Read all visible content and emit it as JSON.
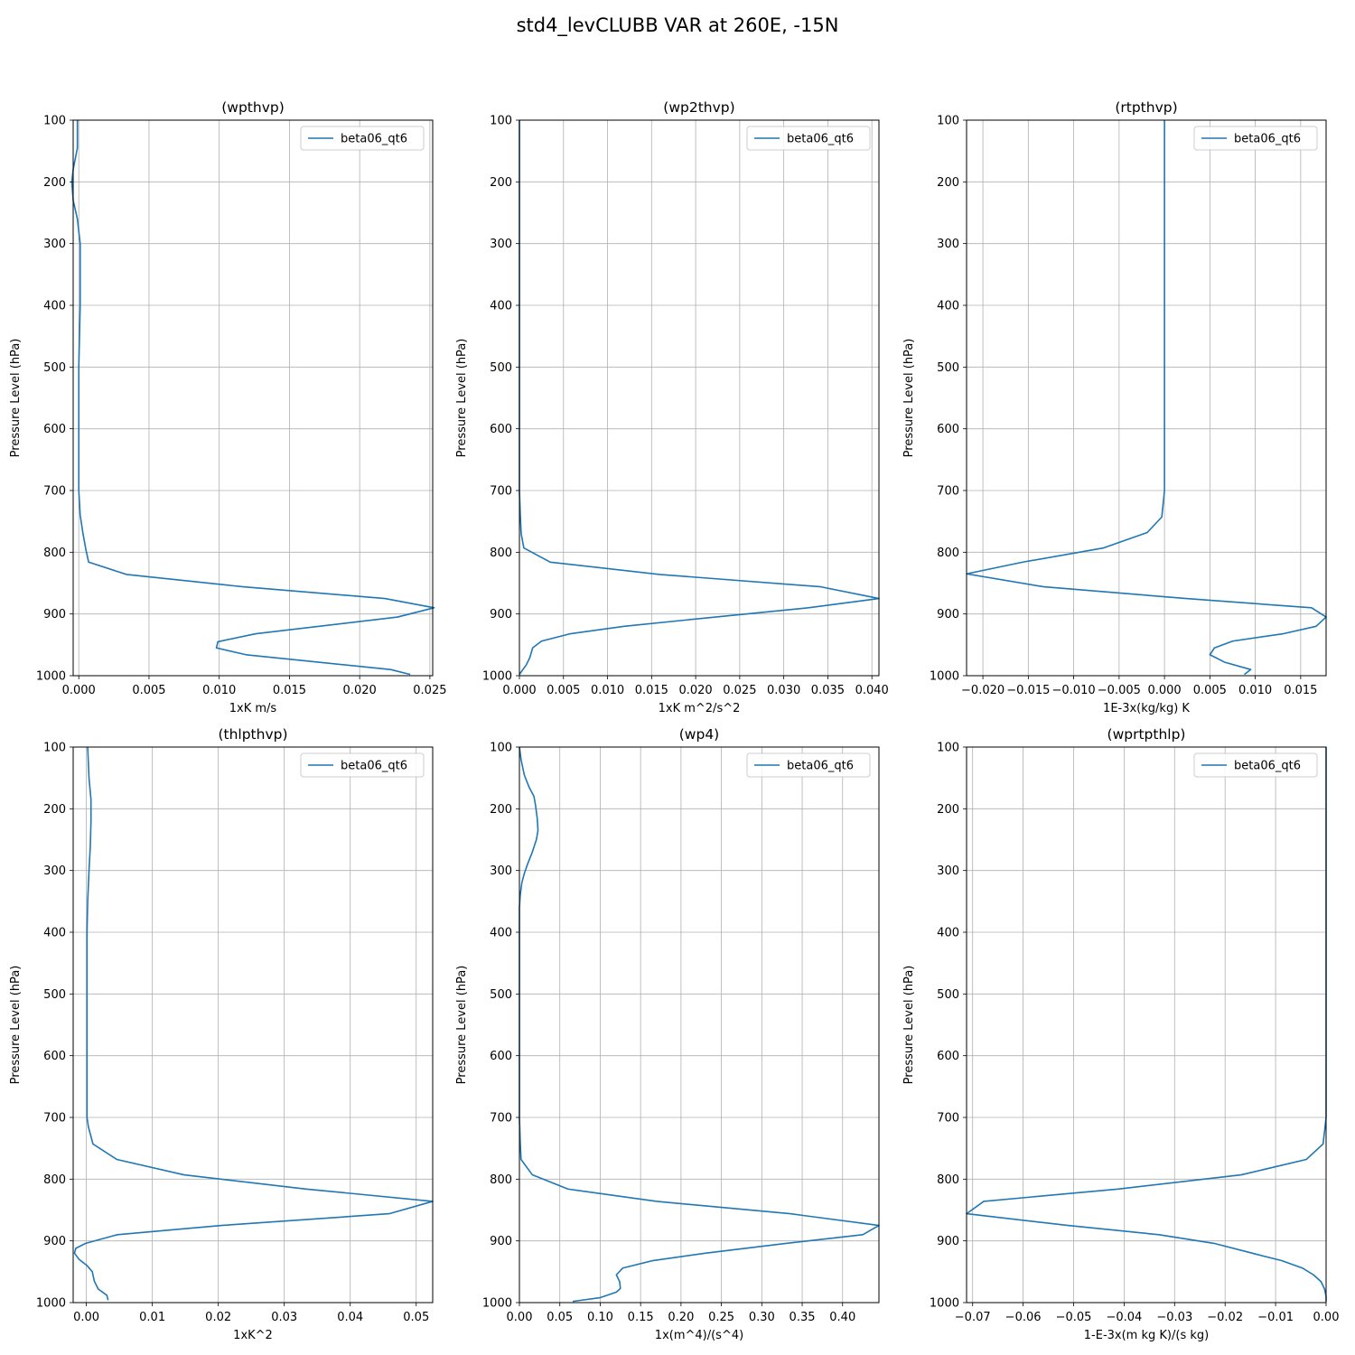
{
  "figure": {
    "suptitle": "std4_levCLUBB VAR at 260E, -15N"
  },
  "chart_data": [
    {
      "type": "line",
      "title": "(wpthvp)",
      "xlabel": "1xK m/s",
      "ylabel": "Pressure Level (hPa)",
      "xlim": [
        -0.0004,
        0.0252
      ],
      "ylim": [
        1000,
        100
      ],
      "y_inverted": true,
      "xticks": [
        0.0,
        0.005,
        0.01,
        0.015,
        0.02,
        0.025
      ],
      "xtick_labels": [
        "0.000",
        "0.005",
        "0.010",
        "0.015",
        "0.020",
        "0.025"
      ],
      "yticks": [
        100,
        200,
        300,
        400,
        500,
        600,
        700,
        800,
        900,
        1000
      ],
      "ytick_labels": [
        "100",
        "200",
        "300",
        "400",
        "500",
        "600",
        "700",
        "800",
        "900",
        "1000"
      ],
      "grid": true,
      "legend": {
        "location": "upper right",
        "entries": [
          "beta06_qt6"
        ]
      },
      "series": [
        {
          "name": "beta06_qt6",
          "color": "#1f77b4",
          "points": [
            [
              -0.0001,
              100
            ],
            [
              -0.0001,
              145
            ],
            [
              -0.0004,
              180
            ],
            [
              -0.0005,
              200
            ],
            [
              -0.0004,
              230
            ],
            [
              -0.0001,
              260
            ],
            [
              0.0,
              280
            ],
            [
              0.0001,
              300
            ],
            [
              0.0001,
              400
            ],
            [
              0.0,
              500
            ],
            [
              0.0,
              600
            ],
            [
              0.0,
              700
            ],
            [
              0.0001,
              740
            ],
            [
              0.0003,
              770
            ],
            [
              0.0005,
              795
            ],
            [
              0.0007,
              816
            ],
            [
              0.0034,
              836
            ],
            [
              0.0117,
              856
            ],
            [
              0.0218,
              875
            ],
            [
              0.0253,
              890
            ],
            [
              0.0227,
              905
            ],
            [
              0.0126,
              932
            ],
            [
              0.0099,
              945
            ],
            [
              0.0098,
              955
            ],
            [
              0.0119,
              966
            ],
            [
              0.0222,
              990
            ],
            [
              0.0236,
              998
            ]
          ]
        }
      ]
    },
    {
      "type": "line",
      "title": "(wp2thvp)",
      "xlabel": "1xK m^2/s^2",
      "ylabel": "Pressure Level (hPa)",
      "xlim": [
        0.0,
        0.0408
      ],
      "ylim": [
        1000,
        100
      ],
      "y_inverted": true,
      "xticks": [
        0.0,
        0.005,
        0.01,
        0.015,
        0.02,
        0.025,
        0.03,
        0.035,
        0.04
      ],
      "xtick_labels": [
        "0.000",
        "0.005",
        "0.010",
        "0.015",
        "0.020",
        "0.025",
        "0.030",
        "0.035",
        "0.040"
      ],
      "yticks": [
        100,
        200,
        300,
        400,
        500,
        600,
        700,
        800,
        900,
        1000
      ],
      "ytick_labels": [
        "100",
        "200",
        "300",
        "400",
        "500",
        "600",
        "700",
        "800",
        "900",
        "1000"
      ],
      "grid": true,
      "legend": {
        "location": "upper right",
        "entries": [
          "beta06_qt6"
        ]
      },
      "series": [
        {
          "name": "beta06_qt6",
          "color": "#1f77b4",
          "points": [
            [
              0.0,
              100
            ],
            [
              0.0,
              700
            ],
            [
              0.0001,
              740
            ],
            [
              0.0002,
              770
            ],
            [
              0.0005,
              793
            ],
            [
              0.0035,
              816
            ],
            [
              0.0159,
              836
            ],
            [
              0.0342,
              856
            ],
            [
              0.0408,
              875
            ],
            [
              0.0328,
              890
            ],
            [
              0.0229,
              904
            ],
            [
              0.0119,
              920
            ],
            [
              0.0058,
              932
            ],
            [
              0.0025,
              944
            ],
            [
              0.0015,
              955
            ],
            [
              0.0012,
              970
            ],
            [
              0.0008,
              982
            ],
            [
              0.0,
              998
            ]
          ]
        }
      ]
    },
    {
      "type": "line",
      "title": "(rtpthvp)",
      "xlabel": "1E-3x(kg/kg) K",
      "ylabel": "Pressure Level (hPa)",
      "xlim": [
        -0.0218,
        0.0178
      ],
      "ylim": [
        1000,
        100
      ],
      "y_inverted": true,
      "xticks": [
        -0.02,
        -0.015,
        -0.01,
        -0.005,
        0.0,
        0.005,
        0.01,
        0.015
      ],
      "xtick_labels": [
        "−0.020",
        "−0.015",
        "−0.010",
        "−0.005",
        "0.000",
        "0.005",
        "0.010",
        "0.015"
      ],
      "yticks": [
        100,
        200,
        300,
        400,
        500,
        600,
        700,
        800,
        900,
        1000
      ],
      "ytick_labels": [
        "100",
        "200",
        "300",
        "400",
        "500",
        "600",
        "700",
        "800",
        "900",
        "1000"
      ],
      "grid": true,
      "legend": {
        "location": "upper right",
        "entries": [
          "beta06_qt6"
        ]
      },
      "series": [
        {
          "name": "beta06_qt6",
          "color": "#1f77b4",
          "points": [
            [
              0.0,
              100
            ],
            [
              0.0,
              700
            ],
            [
              -0.0001,
              715
            ],
            [
              -0.0003,
              743
            ],
            [
              -0.0019,
              768
            ],
            [
              -0.0067,
              793
            ],
            [
              -0.0156,
              816
            ],
            [
              -0.0218,
              835
            ],
            [
              -0.0133,
              856
            ],
            [
              0.0024,
              875
            ],
            [
              0.0162,
              890
            ],
            [
              0.0178,
              905
            ],
            [
              0.0167,
              920
            ],
            [
              0.0131,
              932
            ],
            [
              0.0075,
              944
            ],
            [
              0.0055,
              955
            ],
            [
              0.005,
              966
            ],
            [
              0.0066,
              978
            ],
            [
              0.0095,
              990
            ],
            [
              0.0088,
              998
            ]
          ]
        }
      ]
    },
    {
      "type": "line",
      "title": "(thlpthvp)",
      "xlabel": "1xK^2",
      "ylabel": "Pressure Level (hPa)",
      "xlim": [
        -0.002,
        0.0525
      ],
      "ylim": [
        1000,
        100
      ],
      "y_inverted": true,
      "xticks": [
        0.0,
        0.01,
        0.02,
        0.03,
        0.04,
        0.05
      ],
      "xtick_labels": [
        "0.00",
        "0.01",
        "0.02",
        "0.03",
        "0.04",
        "0.05"
      ],
      "yticks": [
        100,
        200,
        300,
        400,
        500,
        600,
        700,
        800,
        900,
        1000
      ],
      "ytick_labels": [
        "100",
        "200",
        "300",
        "400",
        "500",
        "600",
        "700",
        "800",
        "900",
        "1000"
      ],
      "grid": true,
      "legend": {
        "location": "upper right",
        "entries": [
          "beta06_qt6"
        ]
      },
      "series": [
        {
          "name": "beta06_qt6",
          "color": "#1f77b4",
          "points": [
            [
              0.0002,
              100
            ],
            [
              0.0004,
              150
            ],
            [
              0.0007,
              185
            ],
            [
              0.0007,
              220
            ],
            [
              0.0006,
              260
            ],
            [
              0.0004,
              300
            ],
            [
              0.0002,
              350
            ],
            [
              0.0001,
              400
            ],
            [
              0.0001,
              500
            ],
            [
              0.0001,
              600
            ],
            [
              0.0001,
              700
            ],
            [
              0.0003,
              715
            ],
            [
              0.001,
              743
            ],
            [
              0.0046,
              768
            ],
            [
              0.0148,
              793
            ],
            [
              0.0333,
              816
            ],
            [
              0.0525,
              836
            ],
            [
              0.0459,
              856
            ],
            [
              0.0205,
              875
            ],
            [
              0.0047,
              890
            ],
            [
              -0.0001,
              904
            ],
            [
              -0.0016,
              912
            ],
            [
              -0.0018,
              920
            ],
            [
              -0.0011,
              930
            ],
            [
              0.0001,
              940
            ],
            [
              0.0009,
              950
            ],
            [
              0.0012,
              965
            ],
            [
              0.0018,
              978
            ],
            [
              0.0031,
              988
            ],
            [
              0.0033,
              996
            ]
          ]
        }
      ]
    },
    {
      "type": "line",
      "title": "(wp4)",
      "xlabel": "1x(m^4)/(s^4)",
      "ylabel": "Pressure Level (hPa)",
      "xlim": [
        0.0,
        0.445
      ],
      "ylim": [
        1000,
        100
      ],
      "y_inverted": true,
      "xticks": [
        0.0,
        0.05,
        0.1,
        0.15,
        0.2,
        0.25,
        0.3,
        0.35,
        0.4
      ],
      "xtick_labels": [
        "0.00",
        "0.05",
        "0.10",
        "0.15",
        "0.20",
        "0.25",
        "0.30",
        "0.35",
        "0.40"
      ],
      "yticks": [
        100,
        200,
        300,
        400,
        500,
        600,
        700,
        800,
        900,
        1000
      ],
      "ytick_labels": [
        "100",
        "200",
        "300",
        "400",
        "500",
        "600",
        "700",
        "800",
        "900",
        "1000"
      ],
      "grid": true,
      "legend": {
        "location": "upper right",
        "entries": [
          "beta06_qt6"
        ]
      },
      "series": [
        {
          "name": "beta06_qt6",
          "color": "#1f77b4",
          "points": [
            [
              0.0,
              100
            ],
            [
              0.002,
              120
            ],
            [
              0.006,
              145
            ],
            [
              0.012,
              165
            ],
            [
              0.018,
              180
            ],
            [
              0.02,
              195
            ],
            [
              0.022,
              215
            ],
            [
              0.023,
              235
            ],
            [
              0.021,
              250
            ],
            [
              0.016,
              270
            ],
            [
              0.01,
              290
            ],
            [
              0.006,
              305
            ],
            [
              0.003,
              320
            ],
            [
              0.001,
              340
            ],
            [
              0.0,
              360
            ],
            [
              0.0,
              500
            ],
            [
              0.0,
              700
            ],
            [
              0.001,
              740
            ],
            [
              0.002,
              768
            ],
            [
              0.016,
              793
            ],
            [
              0.06,
              816
            ],
            [
              0.17,
              836
            ],
            [
              0.335,
              856
            ],
            [
              0.445,
              875
            ],
            [
              0.425,
              890
            ],
            [
              0.33,
              904
            ],
            [
              0.23,
              920
            ],
            [
              0.165,
              932
            ],
            [
              0.128,
              944
            ],
            [
              0.12,
              955
            ],
            [
              0.124,
              966
            ],
            [
              0.125,
              977
            ],
            [
              0.12,
              983
            ],
            [
              0.1,
              992
            ],
            [
              0.066,
              998
            ]
          ]
        }
      ]
    },
    {
      "type": "line",
      "title": "(wprtpthlp)",
      "xlabel": "1-E-3x(m kg K)/(s kg)",
      "ylabel": "Pressure Level (hPa)",
      "xlim": [
        -0.0712,
        0.0
      ],
      "ylim": [
        1000,
        100
      ],
      "y_inverted": true,
      "xticks": [
        -0.07,
        -0.06,
        -0.05,
        -0.04,
        -0.03,
        -0.02,
        -0.01,
        0.0
      ],
      "xtick_labels": [
        "−0.07",
        "−0.06",
        "−0.05",
        "−0.04",
        "−0.03",
        "−0.02",
        "−0.01",
        "0.00"
      ],
      "yticks": [
        100,
        200,
        300,
        400,
        500,
        600,
        700,
        800,
        900,
        1000
      ],
      "ytick_labels": [
        "100",
        "200",
        "300",
        "400",
        "500",
        "600",
        "700",
        "800",
        "900",
        "1000"
      ],
      "grid": true,
      "legend": {
        "location": "upper right",
        "entries": [
          "beta06_qt6"
        ]
      },
      "series": [
        {
          "name": "beta06_qt6",
          "color": "#1f77b4",
          "points": [
            [
              0.0,
              100
            ],
            [
              0.0,
              700
            ],
            [
              -0.0002,
              715
            ],
            [
              -0.0006,
              743
            ],
            [
              -0.0039,
              768
            ],
            [
              -0.0168,
              793
            ],
            [
              -0.0412,
              816
            ],
            [
              -0.0678,
              836
            ],
            [
              -0.0712,
              856
            ],
            [
              -0.0511,
              875
            ],
            [
              -0.0331,
              890
            ],
            [
              -0.0222,
              904
            ],
            [
              -0.0146,
              920
            ],
            [
              -0.0088,
              932
            ],
            [
              -0.0047,
              944
            ],
            [
              -0.0025,
              955
            ],
            [
              -0.001,
              966
            ],
            [
              -0.0003,
              978
            ],
            [
              0.0,
              990
            ],
            [
              0.0,
              998
            ]
          ]
        }
      ]
    }
  ]
}
